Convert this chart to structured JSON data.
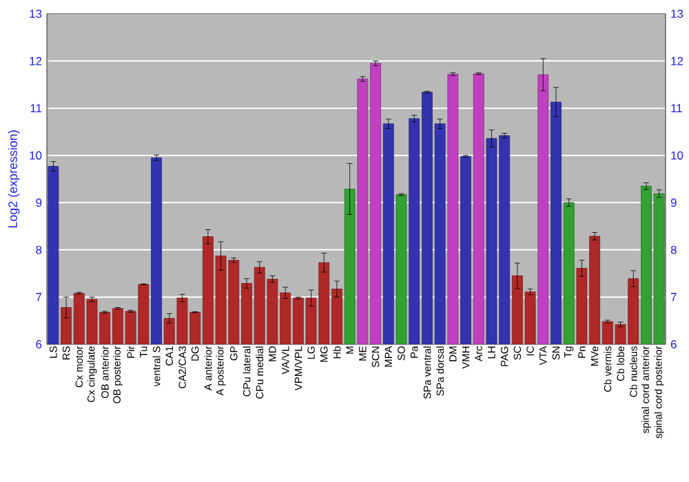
{
  "chart_data": {
    "type": "bar",
    "ylabel": "Log2 (expression)",
    "categories": [
      "LS",
      "RS",
      "Cx motor",
      "Cx cingulate",
      "OB anterior",
      "OB posterior",
      "Pir",
      "Tu",
      "ventral S",
      "CA1",
      "CA2/CA3",
      "DG",
      "A anterior",
      "A posterior",
      "GP",
      "CPu lateral",
      "CPu medial",
      "MD",
      "VA/VL",
      "VPM/VPL",
      "LG",
      "MG",
      "Hb",
      "M",
      "ME",
      "SCN",
      "MPA",
      "SO",
      "Pa",
      "SPa ventral",
      "SPa dorsal",
      "DM",
      "VMH",
      "Arc",
      "LH",
      "PAG",
      "SC",
      "IC",
      "VTA",
      "SN",
      "Tg",
      "Pn",
      "MVe",
      "Cb vermis",
      "Cb lobe",
      "Cb nucleus",
      "spinal cord anterior",
      "spinal cord posterior"
    ],
    "values": [
      9.77,
      6.78,
      7.08,
      6.95,
      6.68,
      6.76,
      6.7,
      7.27,
      9.95,
      6.55,
      6.98,
      6.68,
      8.28,
      7.87,
      7.78,
      7.29,
      7.63,
      7.38,
      7.09,
      6.98,
      6.98,
      7.73,
      7.17,
      9.29,
      11.62,
      11.95,
      10.67,
      9.17,
      10.78,
      11.34,
      10.67,
      11.72,
      9.98,
      11.73,
      10.36,
      10.42,
      7.45,
      7.11,
      11.71,
      11.13,
      9.0,
      7.61,
      8.29,
      6.48,
      6.42,
      7.39,
      9.35,
      9.19
    ],
    "errors": [
      0.1,
      0.22,
      0.02,
      0.05,
      0.02,
      0.02,
      0.02,
      0.01,
      0.06,
      0.1,
      0.08,
      0.01,
      0.15,
      0.3,
      0.05,
      0.1,
      0.12,
      0.07,
      0.12,
      0.02,
      0.17,
      0.2,
      0.17,
      0.54,
      0.05,
      0.05,
      0.1,
      0.02,
      0.07,
      0.02,
      0.1,
      0.03,
      0.02,
      0.02,
      0.18,
      0.05,
      0.27,
      0.06,
      0.34,
      0.31,
      0.08,
      0.17,
      0.08,
      0.03,
      0.05,
      0.17,
      0.07,
      0.08
    ],
    "colors": [
      "#3333b0",
      "#b02828",
      "#b02828",
      "#b02828",
      "#b02828",
      "#b02828",
      "#b02828",
      "#b02828",
      "#3333b0",
      "#b02828",
      "#b02828",
      "#b02828",
      "#b02828",
      "#b02828",
      "#b02828",
      "#b02828",
      "#b02828",
      "#b02828",
      "#b02828",
      "#b02828",
      "#b02828",
      "#b02828",
      "#b02828",
      "#33a033",
      "#c040c0",
      "#c040c0",
      "#3333b0",
      "#33a033",
      "#3333b0",
      "#3333b0",
      "#3333b0",
      "#c040c0",
      "#3333b0",
      "#c040c0",
      "#3333b0",
      "#3333b0",
      "#b02828",
      "#b02828",
      "#c040c0",
      "#3333b0",
      "#33a033",
      "#b02828",
      "#b02828",
      "#b02828",
      "#b02828",
      "#b02828",
      "#33a033",
      "#33a033"
    ],
    "ylim": [
      6,
      13
    ],
    "yticks": [
      6,
      7,
      8,
      9,
      10,
      11,
      12,
      13
    ],
    "y2lim": [
      6,
      13
    ],
    "y2ticks": [
      6,
      7,
      8,
      9,
      10,
      11,
      12,
      13
    ],
    "grid": "y"
  }
}
